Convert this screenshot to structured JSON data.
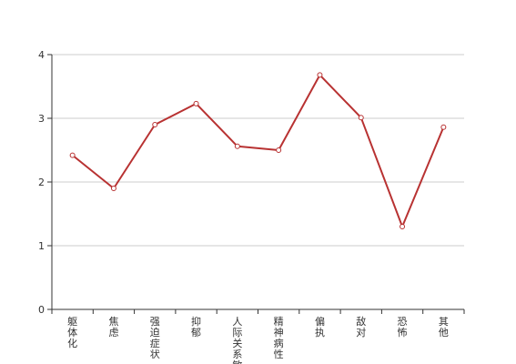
{
  "chart_data": {
    "type": "line",
    "categories": [
      "躯体化",
      "焦虑",
      "强迫症状",
      "抑郁",
      "人际关系敏感",
      "精神病性",
      "偏执",
      "敌对",
      "恐怖",
      "其他"
    ],
    "series": [
      {
        "values": [
          2.42,
          1.9,
          2.9,
          3.23,
          2.56,
          2.5,
          3.68,
          3.01,
          1.3,
          2.86
        ]
      }
    ],
    "ylim": [
      0,
      4
    ],
    "yticks": [
      0,
      1,
      2,
      3,
      4
    ],
    "grid": true,
    "title": "",
    "xlabel": "",
    "ylabel": "",
    "colors": {
      "line": "#b83232",
      "grid": "#cccccc",
      "axis": "#333333"
    }
  }
}
